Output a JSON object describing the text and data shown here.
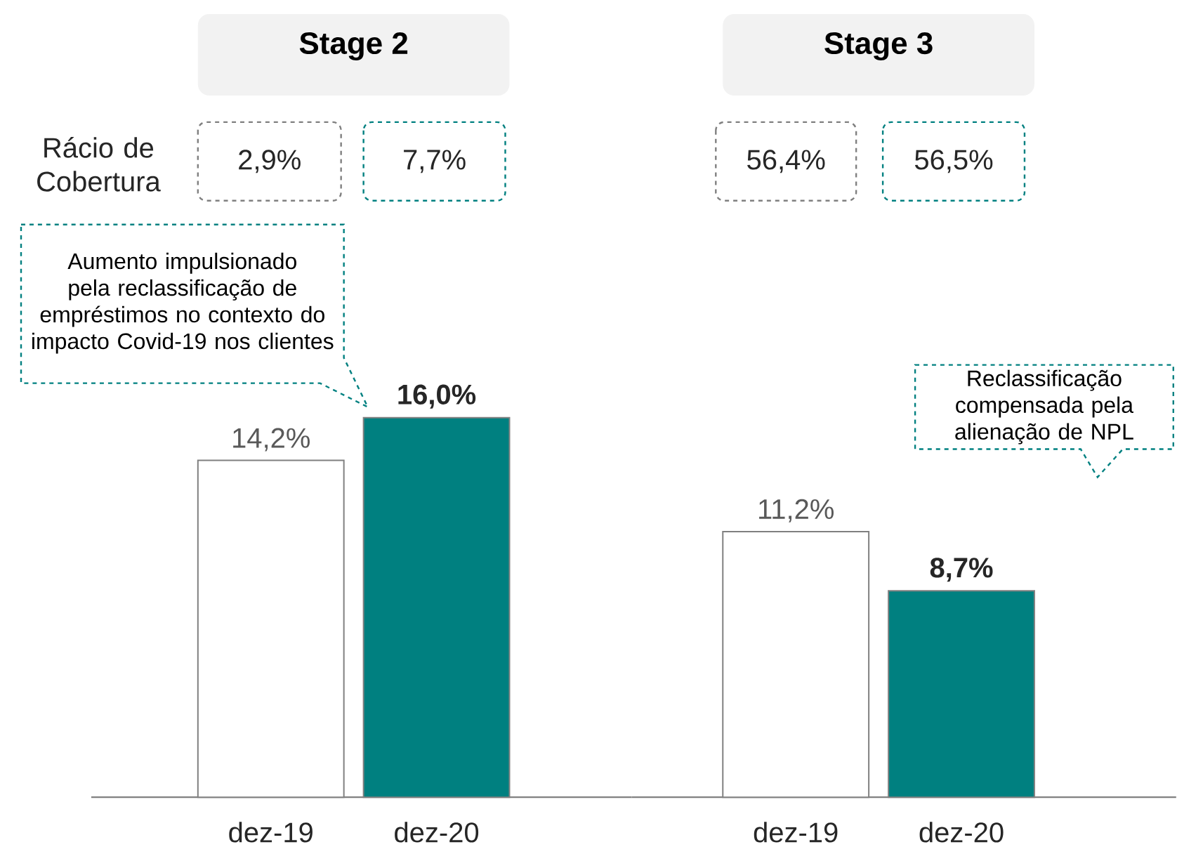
{
  "chart_data": [
    {
      "type": "bar",
      "title": "Stage 2",
      "categories": [
        "dez-19",
        "dez-20"
      ],
      "values": [
        14.2,
        16.0
      ],
      "colors": [
        "#ffffff",
        "#008080"
      ],
      "value_labels": [
        "14,2%",
        "16,0%"
      ],
      "tick_labels": "x",
      "annotations": [
        "Rácio de Cobertura",
        "2,9%",
        "7,7%",
        "Aumento impulsionado pela reclassificação de empréstimos no contexto do impacto Covid-19 nos clientes"
      ]
    },
    {
      "type": "bar",
      "title": "Stage 3",
      "categories": [
        "dez-19",
        "dez-20"
      ],
      "values": [
        11.2,
        8.7
      ],
      "colors": [
        "#ffffff",
        "#008080"
      ],
      "value_labels": [
        "11,2%",
        "8,7%"
      ],
      "tick_labels": "x",
      "annotations": [
        "56,4%",
        "56,5%",
        "Reclassificação compensada pela alienação de NPL"
      ]
    }
  ]
}
